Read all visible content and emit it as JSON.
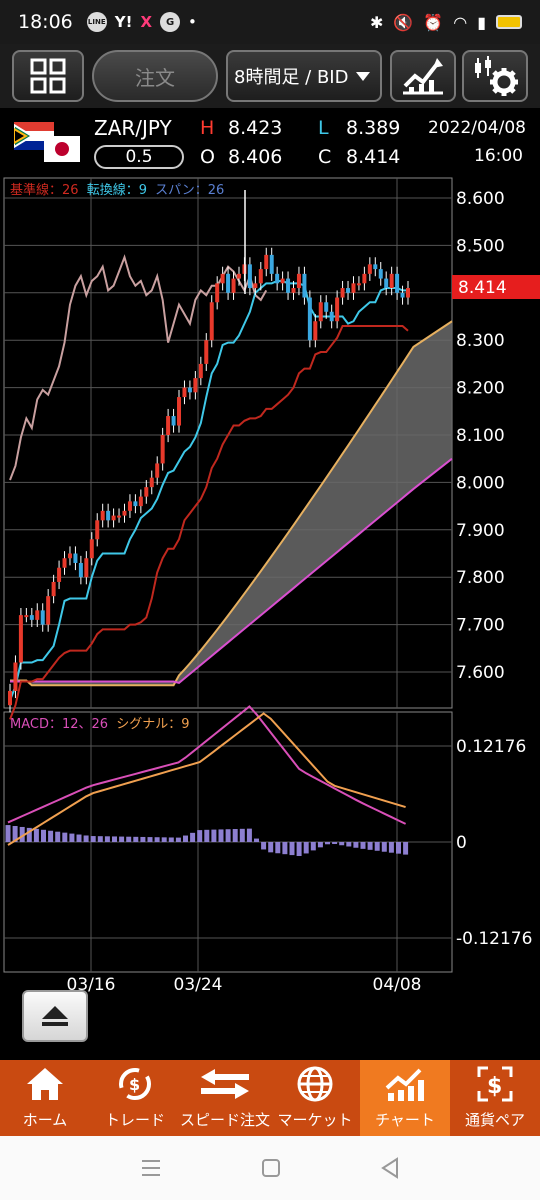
{
  "status_bar": {
    "time": "18:06",
    "notif_icons": [
      "LINE",
      "Y!",
      "X",
      "G",
      "•"
    ]
  },
  "toolbar": {
    "order_label": "注文",
    "period_label": "8時間足 / BID"
  },
  "quote": {
    "pair": "ZAR/JPY",
    "lot": "0.5",
    "h_label": "H",
    "h_value": "8.423",
    "l_label": "L",
    "l_value": "8.389",
    "o_label": "O",
    "o_value": "8.406",
    "c_label": "C",
    "c_value": "8.414",
    "date": "2022/04/08",
    "time": "16:00"
  },
  "main_chart": {
    "legend_kijun": "基準線：26",
    "legend_tenkan": "転換線：9",
    "legend_span": "スパン：26",
    "current_price": "8.414",
    "y_ticks": [
      "8.600",
      "8.500",
      "8.400",
      "8.300",
      "8.200",
      "8.100",
      "8.000",
      "7.900",
      "7.800",
      "7.700",
      "7.600"
    ],
    "y_values": [
      8.6,
      8.5,
      8.4,
      8.3,
      8.2,
      8.1,
      8.0,
      7.9,
      7.8,
      7.7,
      7.6
    ]
  },
  "macd_chart": {
    "legend_macd": "MACD：12、26",
    "legend_signal": "シグナル：9",
    "y_ticks": [
      "0.12176",
      "0",
      "-0.12176"
    ]
  },
  "x_ticks": [
    "03/16",
    "03/24",
    "04/08"
  ],
  "colors": {
    "up": "#e8392b",
    "down": "#3aa7e0",
    "kijun": "#c0281e",
    "tenkan": "#3fc8e8",
    "chikou": "#c9a0a0",
    "spanA": "#e6b060",
    "spanB": "#d94fd0",
    "macd": "#d94fb8",
    "signal": "#f0a050",
    "hist": "#8d7fd0",
    "accent": "#f07a20"
  },
  "nav": {
    "home": "ホーム",
    "trade": "トレード",
    "speed": "スピード注文",
    "market": "マーケット",
    "chart": "チャート",
    "pair": "通貨ペア"
  }
}
